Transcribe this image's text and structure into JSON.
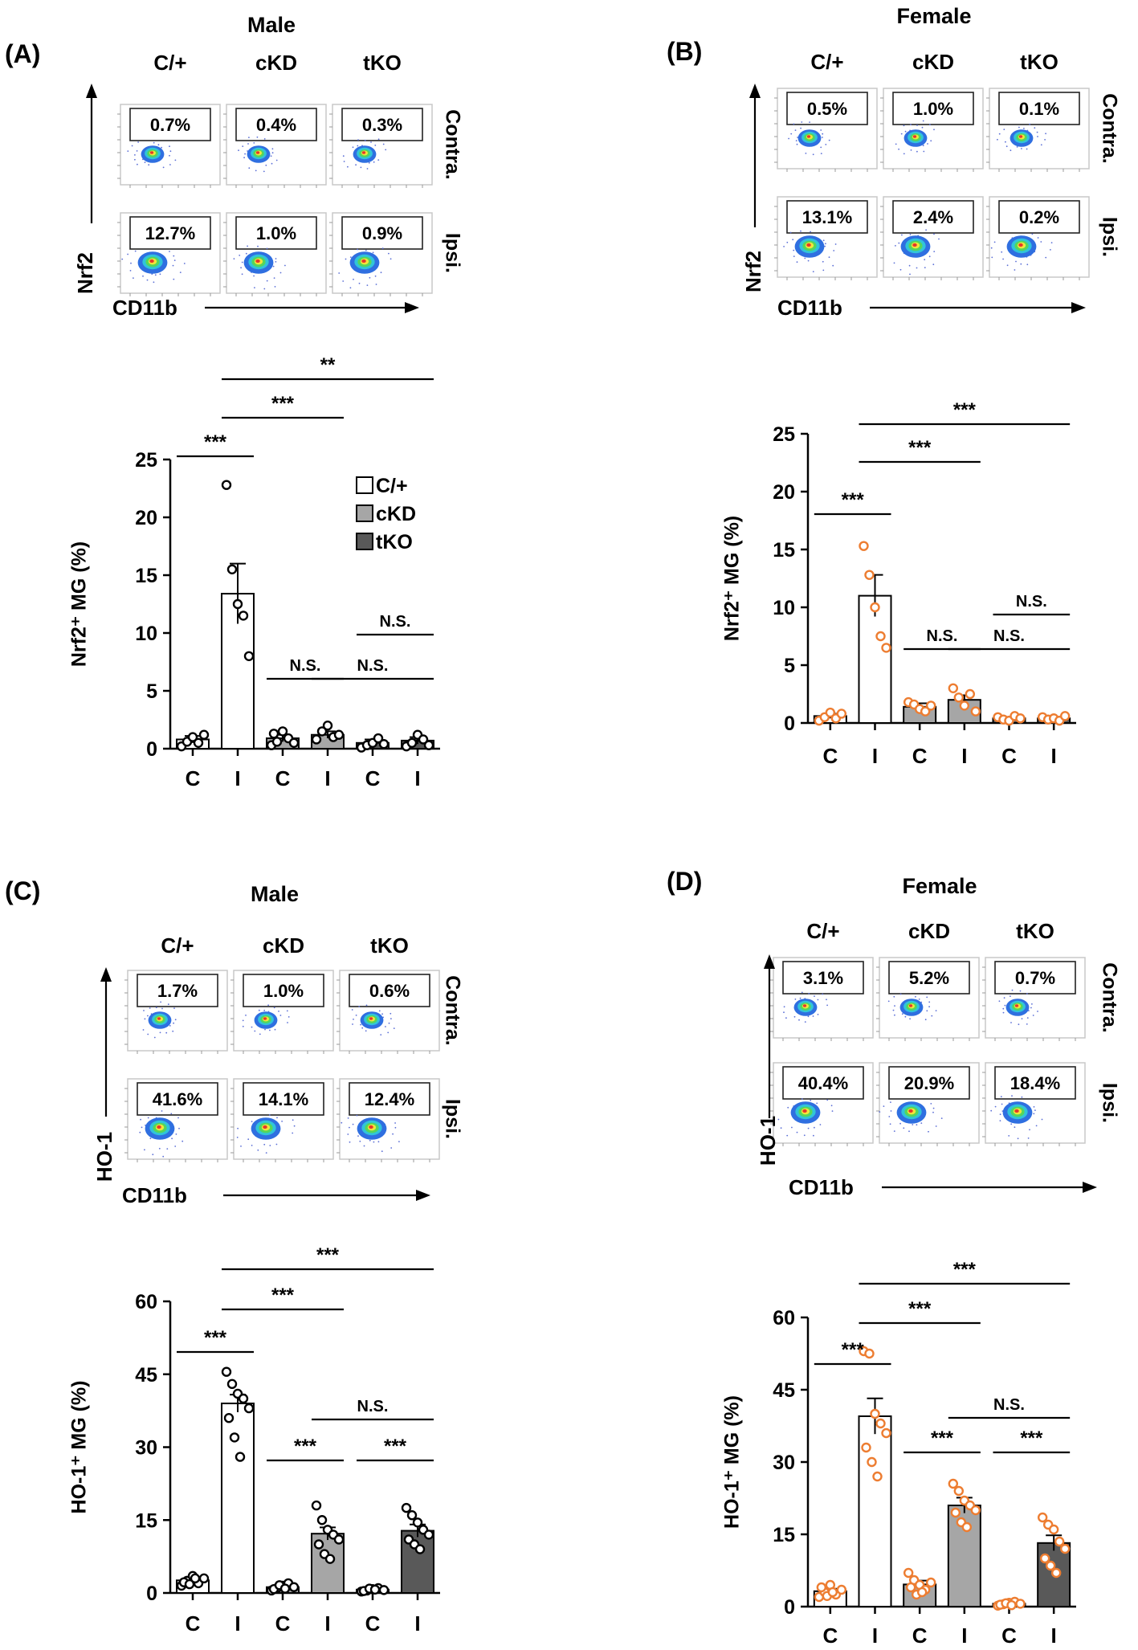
{
  "colors": {
    "cp": "#ffffff",
    "ckd": "#a6a6a6",
    "tko": "#595959",
    "female_dot": "#ed7d31",
    "male_dot": "#000000"
  },
  "legend": [
    "C/+",
    "cKD",
    "tKO"
  ],
  "panels": [
    {
      "label": "(A)",
      "sex": "Male",
      "marker": "Nrf2",
      "xmarker": "CD11b",
      "groups": [
        "C/+",
        "cKD",
        "tKO"
      ],
      "rows": [
        "Contra.",
        "Ipsi."
      ],
      "percents": [
        [
          "0.7%",
          "0.4%",
          "0.3%"
        ],
        [
          "12.7%",
          "1.0%",
          "0.9%"
        ]
      ]
    },
    {
      "label": "(B)",
      "sex": "Female",
      "marker": "Nrf2",
      "xmarker": "CD11b",
      "groups": [
        "C/+",
        "cKD",
        "tKO"
      ],
      "rows": [
        "Contra.",
        "Ipsi."
      ],
      "percents": [
        [
          "0.5%",
          "1.0%",
          "0.1%"
        ],
        [
          "13.1%",
          "2.4%",
          "0.2%"
        ]
      ]
    },
    {
      "label": "(C)",
      "sex": "Male",
      "marker": "HO-1",
      "xmarker": "CD11b",
      "groups": [
        "C/+",
        "cKD",
        "tKO"
      ],
      "rows": [
        "Contra.",
        "Ipsi."
      ],
      "percents": [
        [
          "1.7%",
          "1.0%",
          "0.6%"
        ],
        [
          "41.6%",
          "14.1%",
          "12.4%"
        ]
      ]
    },
    {
      "label": "(D)",
      "sex": "Female",
      "marker": "HO-1",
      "xmarker": "CD11b",
      "groups": [
        "C/+",
        "cKD",
        "tKO"
      ],
      "rows": [
        "Contra.",
        "Ipsi."
      ],
      "percents": [
        [
          "3.1%",
          "5.2%",
          "0.7%"
        ],
        [
          "40.4%",
          "20.9%",
          "18.4%"
        ]
      ]
    }
  ],
  "chart_data": [
    {
      "type": "bar",
      "panel": "A",
      "ylabel": "Nrf2⁺ MG (%)",
      "ylim": [
        0,
        25
      ],
      "yticks": [
        0,
        5,
        10,
        15,
        20,
        25
      ],
      "categories": [
        "C",
        "I",
        "C",
        "I",
        "C",
        "I"
      ],
      "values": [
        0.8,
        13.4,
        0.9,
        1.2,
        0.5,
        0.7
      ],
      "errors": [
        0.3,
        2.6,
        0.3,
        0.3,
        0.3,
        0.3
      ],
      "points": [
        [
          0.2,
          0.6,
          1.0,
          0.5,
          1.2
        ],
        [
          22.8,
          15.5,
          12.5,
          11.5,
          8.0
        ],
        [
          0.3,
          0.6,
          1.5,
          0.9,
          0.5,
          1.3
        ],
        [
          0.8,
          1.5,
          2.0,
          1.0,
          1.2
        ],
        [
          0.1,
          0.3,
          0.5,
          0.9,
          0.4
        ],
        [
          0.2,
          0.5,
          1.2,
          0.8,
          0.3
        ]
      ],
      "comparisons": [
        {
          "from": 0,
          "to": 1,
          "label": "***"
        },
        {
          "from": 1,
          "to": 3,
          "label": "***"
        },
        {
          "from": 1,
          "to": 5,
          "label": "**"
        },
        {
          "from": 2,
          "to": 3,
          "label": "N.S."
        },
        {
          "from": 3,
          "to": 5,
          "label": "N.S."
        },
        {
          "from": 4,
          "to": 5,
          "label": "N.S."
        }
      ]
    },
    {
      "type": "bar",
      "panel": "B",
      "ylabel": "Nrf2⁺ MG (%)",
      "ylim": [
        0,
        25
      ],
      "yticks": [
        0,
        5,
        10,
        15,
        20,
        25
      ],
      "categories": [
        "C",
        "I",
        "C",
        "I",
        "C",
        "I"
      ],
      "values": [
        0.6,
        11.0,
        1.4,
        2.0,
        0.4,
        0.4
      ],
      "errors": [
        0.2,
        1.8,
        0.3,
        0.4,
        0.1,
        0.1
      ],
      "points": [
        [
          0.2,
          0.5,
          0.9,
          0.4,
          0.8
        ],
        [
          15.3,
          12.8,
          10.0,
          7.5,
          6.5
        ],
        [
          1.8,
          1.6,
          1.2,
          1.0,
          1.5
        ],
        [
          3.0,
          2.2,
          1.5,
          2.5,
          1.0
        ],
        [
          0.5,
          0.3,
          0.2,
          0.6,
          0.4
        ],
        [
          0.5,
          0.3,
          0.4,
          0.2,
          0.6
        ]
      ],
      "comparisons": [
        {
          "from": 0,
          "to": 1,
          "label": "***"
        },
        {
          "from": 1,
          "to": 3,
          "label": "***"
        },
        {
          "from": 1,
          "to": 5,
          "label": "***"
        },
        {
          "from": 2,
          "to": 3,
          "label": "N.S."
        },
        {
          "from": 3,
          "to": 5,
          "label": "N.S."
        },
        {
          "from": 4,
          "to": 5,
          "label": "N.S."
        }
      ]
    },
    {
      "type": "bar",
      "panel": "C",
      "ylabel": "HO-1⁺ MG (%)",
      "ylim": [
        0,
        60
      ],
      "yticks": [
        0,
        15,
        30,
        45,
        60
      ],
      "categories": [
        "C",
        "I",
        "C",
        "I",
        "C",
        "I"
      ],
      "values": [
        2.6,
        39.0,
        1.2,
        12.2,
        0.7,
        12.8
      ],
      "errors": [
        0.4,
        1.8,
        0.2,
        1.3,
        0.1,
        1.3
      ],
      "points": [
        [
          1.5,
          2.5,
          3.5,
          2.0,
          3.0,
          2.2,
          1.8,
          3.0
        ],
        [
          45.5,
          43.0,
          41.0,
          40.0,
          38.0,
          36.0,
          32.0,
          28.0
        ],
        [
          0.5,
          1.0,
          1.5,
          2.0,
          1.2,
          0.8,
          1.6,
          0.9
        ],
        [
          18.0,
          15.0,
          13.0,
          12.0,
          11.0,
          10.0,
          8.0,
          7.0
        ],
        [
          0.3,
          0.5,
          0.8,
          1.0,
          0.6,
          0.4,
          0.9,
          0.7
        ],
        [
          17.5,
          16.0,
          14.5,
          13.0,
          12.0,
          11.0,
          10.0,
          9.0
        ]
      ],
      "comparisons": [
        {
          "from": 0,
          "to": 1,
          "label": "***"
        },
        {
          "from": 1,
          "to": 3,
          "label": "***"
        },
        {
          "from": 1,
          "to": 5,
          "label": "***"
        },
        {
          "from": 2,
          "to": 3,
          "label": "***"
        },
        {
          "from": 3,
          "to": 5,
          "label": "N.S."
        },
        {
          "from": 4,
          "to": 5,
          "label": "***"
        }
      ]
    },
    {
      "type": "bar",
      "panel": "D",
      "ylabel": "HO-1⁺ MG (%)",
      "ylim": [
        0,
        60
      ],
      "yticks": [
        0,
        15,
        30,
        45,
        60
      ],
      "categories": [
        "C",
        "I",
        "C",
        "I",
        "C",
        "I"
      ],
      "values": [
        3.2,
        39.5,
        4.6,
        21.0,
        0.6,
        13.2
      ],
      "errors": [
        0.5,
        3.7,
        0.8,
        1.6,
        0.2,
        1.6
      ],
      "points": [
        [
          2.0,
          3.0,
          4.5,
          2.5,
          3.5,
          4.0,
          2.2,
          3.0
        ],
        [
          53.0,
          52.5,
          40.0,
          38.0,
          36.0,
          33.0,
          30.0,
          27.0
        ],
        [
          7.0,
          5.5,
          4.5,
          3.5,
          5.0,
          4.0,
          2.5,
          3.0
        ],
        [
          25.5,
          24.0,
          22.0,
          21.0,
          20.0,
          19.5,
          17.5,
          16.5
        ],
        [
          0.2,
          0.5,
          0.8,
          1.0,
          0.6,
          0.4,
          0.7,
          0.3
        ],
        [
          18.5,
          17.0,
          16.0,
          13.5,
          12.0,
          10.0,
          8.5,
          7.0
        ]
      ],
      "comparisons": [
        {
          "from": 0,
          "to": 1,
          "label": "***"
        },
        {
          "from": 1,
          "to": 3,
          "label": "***"
        },
        {
          "from": 1,
          "to": 5,
          "label": "***"
        },
        {
          "from": 2,
          "to": 3,
          "label": "***"
        },
        {
          "from": 3,
          "to": 5,
          "label": "N.S."
        },
        {
          "from": 4,
          "to": 5,
          "label": "***"
        }
      ]
    }
  ]
}
